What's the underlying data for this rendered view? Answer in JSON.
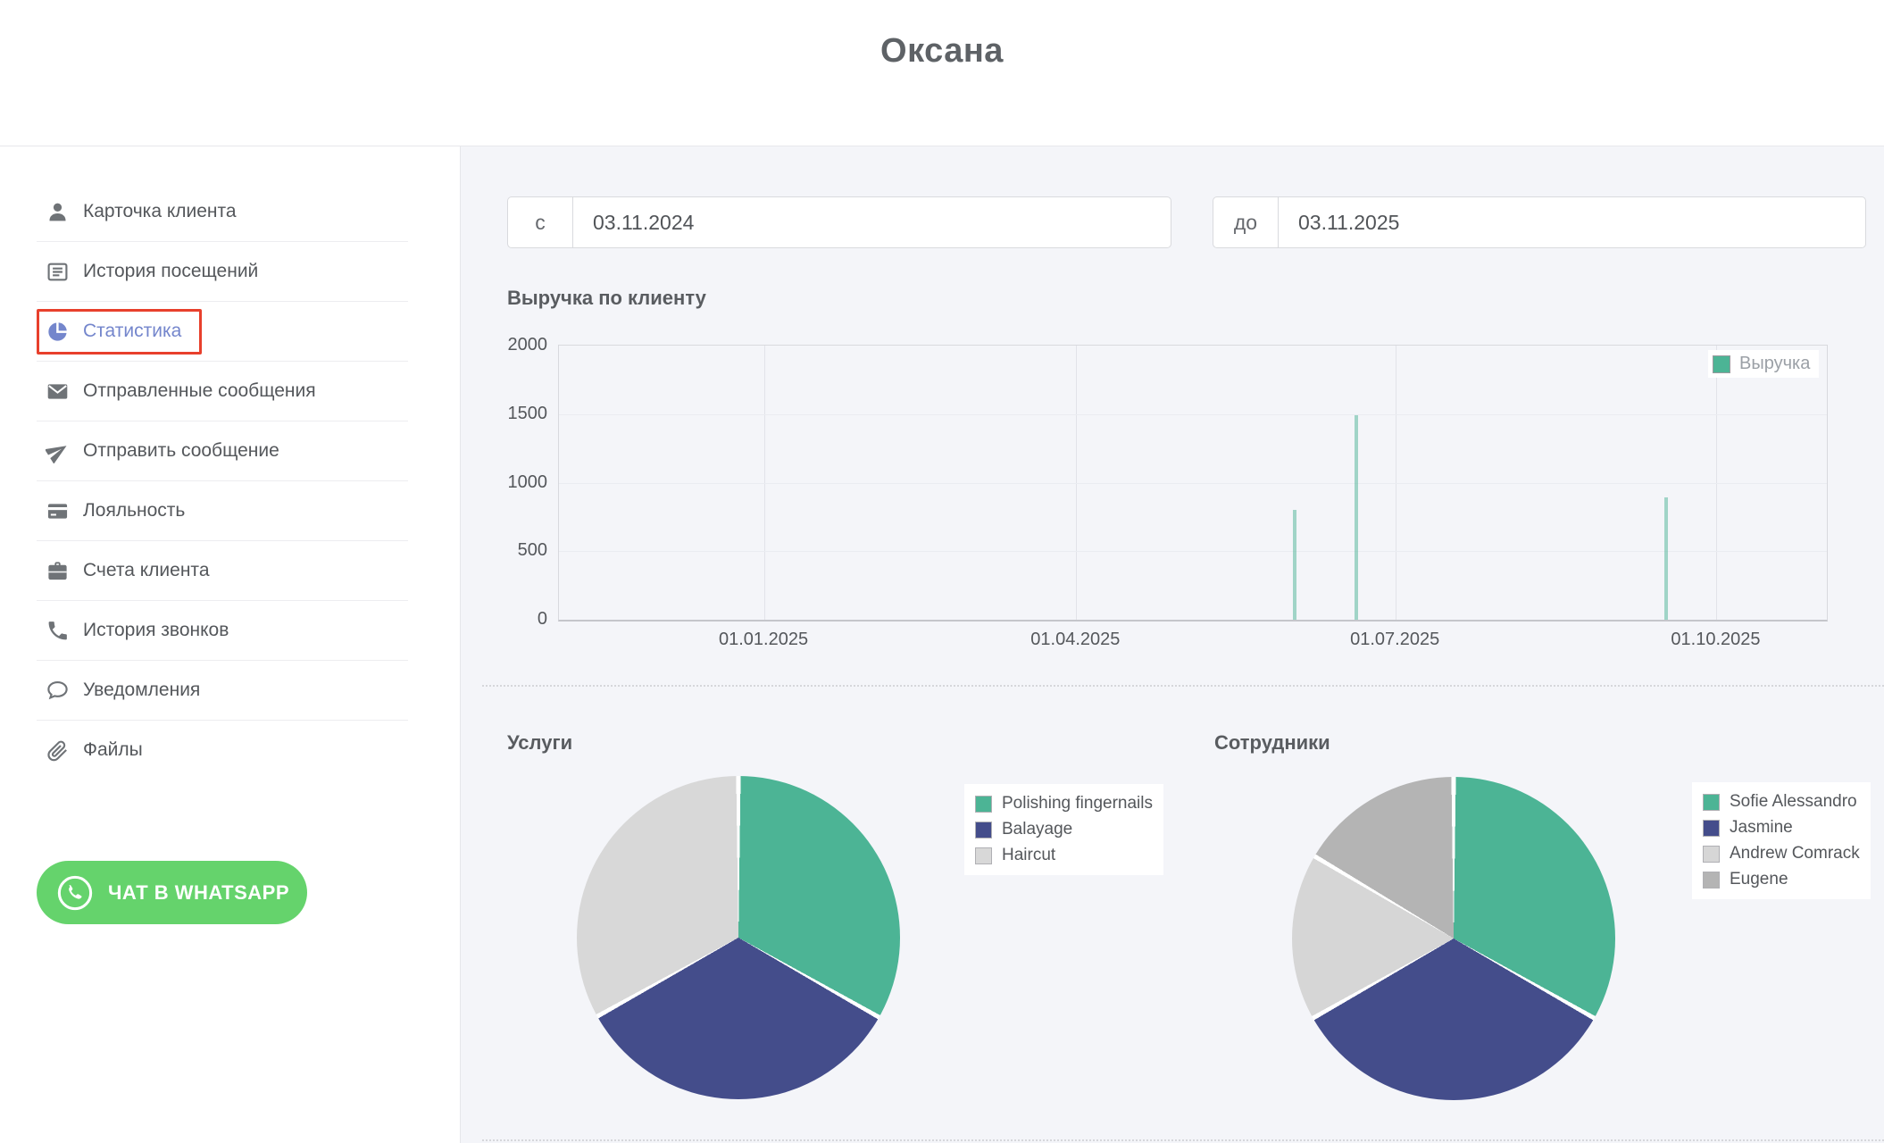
{
  "header": {
    "title": "Оксана"
  },
  "sidebar": {
    "items": [
      {
        "label": "Карточка клиента",
        "icon": "user",
        "active": false
      },
      {
        "label": "История посещений",
        "icon": "list",
        "active": false
      },
      {
        "label": "Статистика",
        "icon": "pie",
        "active": true
      },
      {
        "label": "Отправленные сообщения",
        "icon": "envelope",
        "active": false
      },
      {
        "label": "Отправить сообщение",
        "icon": "send",
        "active": false
      },
      {
        "label": "Лояльность",
        "icon": "card",
        "active": false
      },
      {
        "label": "Счета клиента",
        "icon": "briefcase",
        "active": false
      },
      {
        "label": "История звонков",
        "icon": "phone",
        "active": false
      },
      {
        "label": "Уведомления",
        "icon": "chat",
        "active": false
      },
      {
        "label": "Файлы",
        "icon": "paperclip",
        "active": false
      }
    ],
    "active_color": "#7486cc",
    "icon_color": "#6f7377",
    "highlight_box_color": "#e8402c",
    "whatsapp_button": {
      "label": "ЧАТ В WHATSAPP",
      "color": "#65d36c"
    }
  },
  "filters": {
    "from": {
      "prefix": "с",
      "value": "03.11.2024"
    },
    "to": {
      "prefix": "до",
      "value": "03.11.2025"
    }
  },
  "chart_data": [
    {
      "type": "bar",
      "title": "Выручка по клиенту",
      "legend": [
        "Выручка"
      ],
      "legend_position": "top-right",
      "series_color": "#4cb495",
      "bar_color": "rgba(76,180,149,0.5)",
      "ylim": [
        0,
        2000
      ],
      "yticks": [
        0,
        500,
        1000,
        1500,
        2000
      ],
      "grid": true,
      "xticks": [
        {
          "label": "01.01.2025",
          "pos": 0.162
        },
        {
          "label": "01.04.2025",
          "pos": 0.408
        },
        {
          "label": "01.07.2025",
          "pos": 0.66
        },
        {
          "label": "01.10.2025",
          "pos": 0.913
        }
      ],
      "x_range": [
        "03.11.2024",
        "03.11.2025"
      ],
      "bars": [
        {
          "approx_date": "03.06.2025",
          "value": 800,
          "pos": 0.58
        },
        {
          "approx_date": "21.06.2025",
          "value": 1490,
          "pos": 0.629
        },
        {
          "approx_date": "18.09.2025",
          "value": 890,
          "pos": 0.873
        }
      ]
    },
    {
      "type": "pie",
      "title": "Услуги",
      "slices": [
        {
          "label": "Polishing fingernails",
          "percent": 33.2,
          "color": "#4cb495"
        },
        {
          "label": "Balayage",
          "percent": 33.7,
          "color": "#444d8b"
        },
        {
          "label": "Haircut",
          "percent": 33.1,
          "color": "#d8d8d8"
        }
      ]
    },
    {
      "type": "pie",
      "title": "Сотрудники",
      "slices": [
        {
          "label": "Sofie Alessandro",
          "percent": 33.2,
          "color": "#4cb495"
        },
        {
          "label": "Jasmine",
          "percent": 33.6,
          "color": "#444d8b"
        },
        {
          "label": "Andrew Comrack",
          "percent": 16.7,
          "color": "#d6d6d6"
        },
        {
          "label": "Eugene",
          "percent": 16.5,
          "color": "#b4b4b4"
        }
      ]
    }
  ]
}
